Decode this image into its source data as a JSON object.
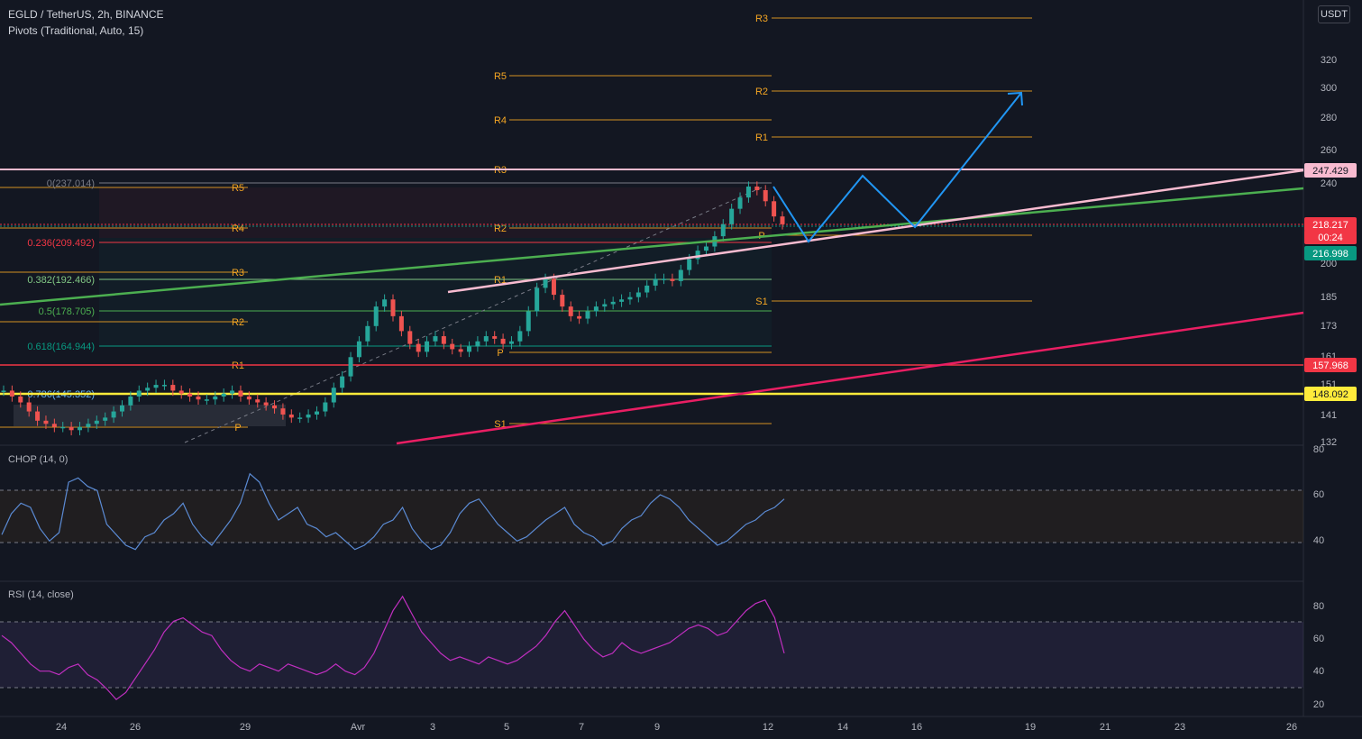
{
  "header": {
    "symbol_line": "EGLD / TetherUS, 2h, BINANCE",
    "indicator_line": "Pivots (Traditional, Auto, 15)"
  },
  "currency_button": "USDT",
  "panes": {
    "chop_label": "CHOP (14, 0)",
    "rsi_label": "RSI (14, close)"
  },
  "colors": {
    "background": "#131722",
    "pivot_line": "#f5a623",
    "candle_up": "#26a69a",
    "candle_down": "#ef5350",
    "green_trend": "#4caf50",
    "pink_trend": "#f8bbd0",
    "magenta_trend": "#e91e63",
    "projection": "#2196f3",
    "chop_line": "#5b8bd4",
    "rsi_line": "#c02fc0",
    "price_red": "#f23645",
    "price_teal": "#089981"
  },
  "chart_data": [
    {
      "type": "candlestick",
      "title": "EGLD / TetherUS, 2h, BINANCE",
      "y_ticks": [
        "320",
        "300",
        "280",
        "260",
        "240",
        "200",
        "185",
        "173",
        "161",
        "151",
        "141",
        "132"
      ],
      "y_scale": "log",
      "x_ticks": [
        "24",
        "26",
        "29",
        "Avr",
        "3",
        "5",
        "7",
        "9",
        "12",
        "14",
        "16",
        "19",
        "21",
        "23",
        "26"
      ],
      "price_close": [
        148,
        146,
        144,
        141,
        138,
        137,
        136,
        136,
        135,
        136,
        137,
        138,
        139,
        141,
        143,
        146,
        148,
        149,
        150,
        150,
        148,
        147,
        146,
        145,
        145,
        146,
        147,
        148,
        146,
        145,
        144,
        143,
        142,
        140,
        139,
        139,
        140,
        141,
        144,
        149,
        153,
        160,
        166,
        172,
        180,
        183,
        176,
        170,
        165,
        162,
        166,
        168,
        165,
        163,
        162,
        164,
        166,
        168,
        167,
        165,
        166,
        170,
        178,
        188,
        192,
        185,
        180,
        176,
        175,
        178,
        180,
        181,
        182,
        183,
        184,
        186,
        189,
        192,
        192,
        191,
        196,
        201,
        205,
        207,
        212,
        218,
        226,
        232,
        238,
        236,
        230,
        222,
        218
      ],
      "pivots_left": {
        "R5": "R5",
        "R4": "R4",
        "R3": "R3",
        "R2": "R2",
        "R1": "R1",
        "P": "P"
      },
      "pivots_mid": {
        "R5": "R5",
        "R4": "R4",
        "R3": "R3",
        "R2": "R2",
        "R1": "R1",
        "P": "P",
        "S1": "S1"
      },
      "pivots_right": {
        "R3": "R3",
        "R2": "R2",
        "R1": "R1",
        "P": "P",
        "S1": "S1"
      },
      "fib_levels": [
        {
          "label": "0(237.014)",
          "color": "#787b86"
        },
        {
          "label": "0.236(209.492)",
          "color": "#f23645"
        },
        {
          "label": "0.382(192.466)",
          "color": "#81c784"
        },
        {
          "label": "0.5(178.705)",
          "color": "#4caf50"
        },
        {
          "label": "0.618(164.944)",
          "color": "#089981"
        },
        {
          "label": "0.786(145.352)",
          "color": "#64b5f6"
        }
      ],
      "price_tags": [
        {
          "value": "247.429",
          "bg": "#f8bbd0",
          "fg": "#131722"
        },
        {
          "value": "218.217",
          "bg": "#f23645",
          "fg": "#ffffff"
        },
        {
          "value": "00:24",
          "bg": "#f23645",
          "fg": "#ffffff"
        },
        {
          "value": "216.998",
          "bg": "#089981",
          "fg": "#ffffff"
        },
        {
          "value": "157.968",
          "bg": "#f23645",
          "fg": "#ffffff"
        },
        {
          "value": "148.092",
          "bg": "#ffeb3b",
          "fg": "#131722"
        }
      ]
    },
    {
      "type": "line",
      "title": "CHOP (14, 0)",
      "y_ticks": [
        "80",
        "60",
        "40"
      ],
      "ylim": [
        25,
        85
      ],
      "bands": [
        61.8,
        38.2
      ],
      "values": [
        45,
        55,
        60,
        58,
        48,
        42,
        46,
        70,
        72,
        68,
        66,
        50,
        45,
        40,
        38,
        44,
        46,
        52,
        55,
        60,
        50,
        44,
        40,
        46,
        52,
        60,
        74,
        70,
        60,
        52,
        55,
        58,
        50,
        48,
        44,
        46,
        42,
        38,
        40,
        44,
        50,
        52,
        58,
        48,
        42,
        38,
        40,
        46,
        55,
        60,
        62,
        56,
        50,
        46,
        42,
        44,
        48,
        52,
        55,
        58,
        50,
        46,
        44,
        40,
        42,
        48,
        52,
        54,
        60,
        64,
        62,
        58,
        52,
        48,
        44,
        40,
        42,
        46,
        50,
        52,
        56,
        58,
        62
      ]
    },
    {
      "type": "line",
      "title": "RSI (14, close)",
      "y_ticks": [
        "80",
        "60",
        "40",
        "20"
      ],
      "ylim": [
        16,
        88
      ],
      "bands": [
        70,
        30
      ],
      "values": [
        60,
        56,
        50,
        44,
        40,
        40,
        38,
        42,
        44,
        38,
        35,
        30,
        24,
        28,
        36,
        44,
        52,
        62,
        68,
        70,
        66,
        62,
        60,
        52,
        46,
        42,
        40,
        44,
        42,
        40,
        44,
        42,
        40,
        38,
        40,
        44,
        40,
        38,
        42,
        50,
        62,
        74,
        82,
        72,
        62,
        56,
        50,
        46,
        48,
        46,
        44,
        48,
        46,
        44,
        46,
        50,
        54,
        60,
        68,
        74,
        66,
        58,
        52,
        48,
        50,
        56,
        52,
        50,
        52,
        54,
        56,
        60,
        64,
        66,
        64,
        60,
        62,
        68,
        74,
        78,
        80,
        70,
        50
      ]
    }
  ]
}
